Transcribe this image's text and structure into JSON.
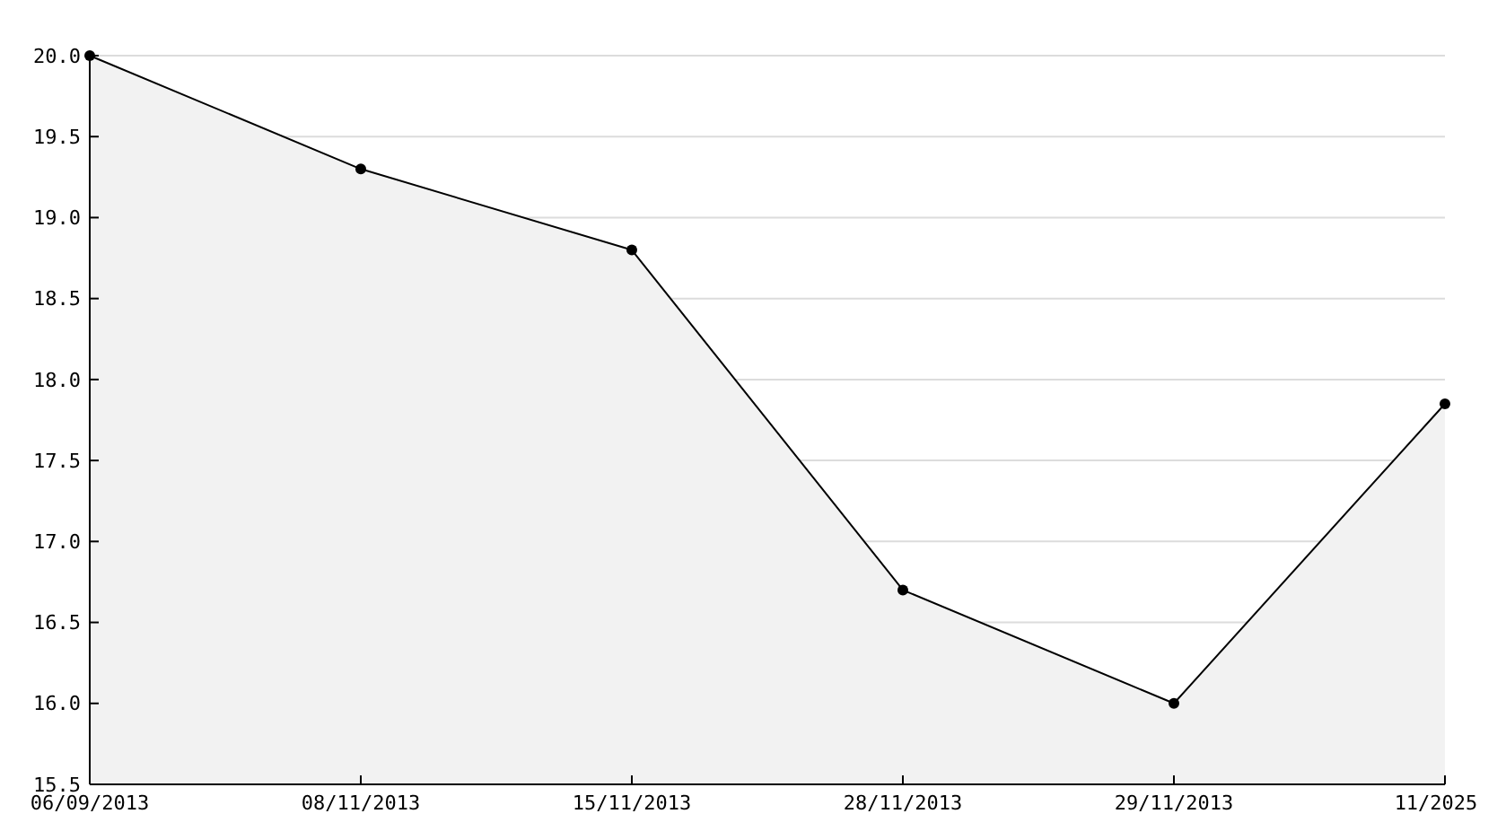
{
  "chart_data": {
    "type": "area",
    "categories": [
      "06/09/2013",
      "08/11/2013",
      "15/11/2013",
      "28/11/2013",
      "29/11/2013",
      "11/2025"
    ],
    "series": [
      {
        "color": "#000000",
        "values": [
          20.0,
          19.3,
          18.8,
          16.7,
          16.0,
          17.85
        ]
      }
    ],
    "ylim": [
      15.5,
      20.0
    ],
    "yticks": [
      {
        "value": 15.5,
        "label": "15.5"
      },
      {
        "value": 16,
        "label": "16.0"
      },
      {
        "value": 16.5,
        "label": "16.5"
      },
      {
        "value": 17,
        "label": "17.0"
      },
      {
        "value": 17.5,
        "label": "17.5"
      },
      {
        "value": 18,
        "label": "18.0"
      },
      {
        "value": 18.5,
        "label": "18.5"
      },
      {
        "value": 19,
        "label": "19.0"
      },
      {
        "value": 19.5,
        "label": "19.5"
      },
      {
        "value": 20,
        "label": "20.0"
      }
    ],
    "grid": "y",
    "marker": "circle",
    "line_style": "solid"
  }
}
